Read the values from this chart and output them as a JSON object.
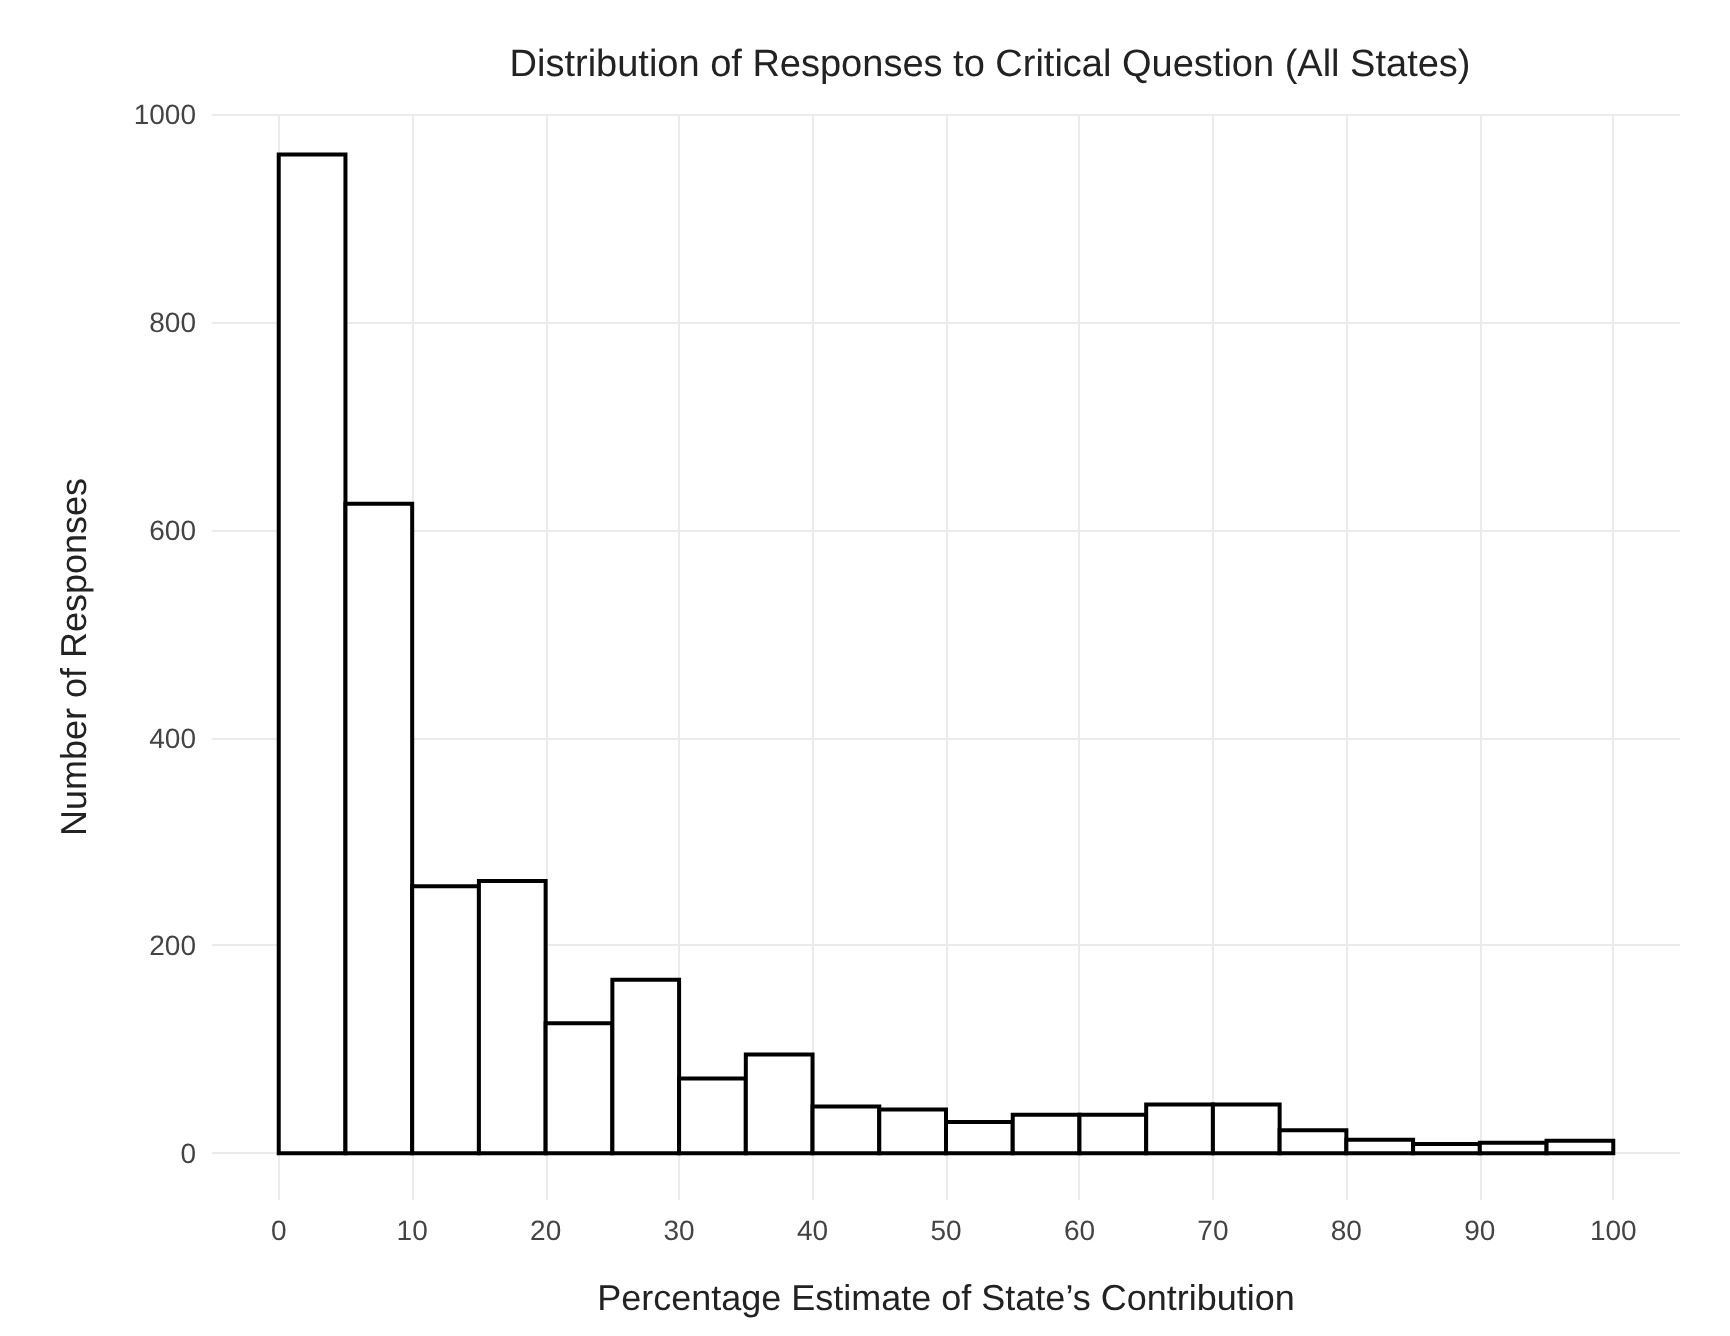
{
  "chart_data": {
    "type": "histogram",
    "title": "Distribution of Responses to Critical Question (All States)",
    "xlabel": "Percentage Estimate of State’s Contribution",
    "ylabel": "Number of Responses",
    "bins": [
      0,
      5,
      10,
      15,
      20,
      25,
      30,
      35,
      40,
      45,
      50,
      55,
      60,
      65,
      70,
      75,
      80,
      85,
      90,
      95,
      100
    ],
    "values": [
      961,
      625,
      257,
      262,
      125,
      167,
      72,
      95,
      45,
      42,
      30,
      37,
      37,
      47,
      47,
      22,
      13,
      9,
      10,
      12
    ],
    "color": "#ffffff",
    "xlim": [
      -5,
      105
    ],
    "xticks": [
      0,
      10,
      20,
      30,
      40,
      50,
      60,
      70,
      80,
      90,
      100
    ],
    "ylim": [
      -45,
      1000
    ],
    "yticks": [
      0,
      200,
      400,
      600,
      800,
      1000
    ],
    "grid": true
  }
}
